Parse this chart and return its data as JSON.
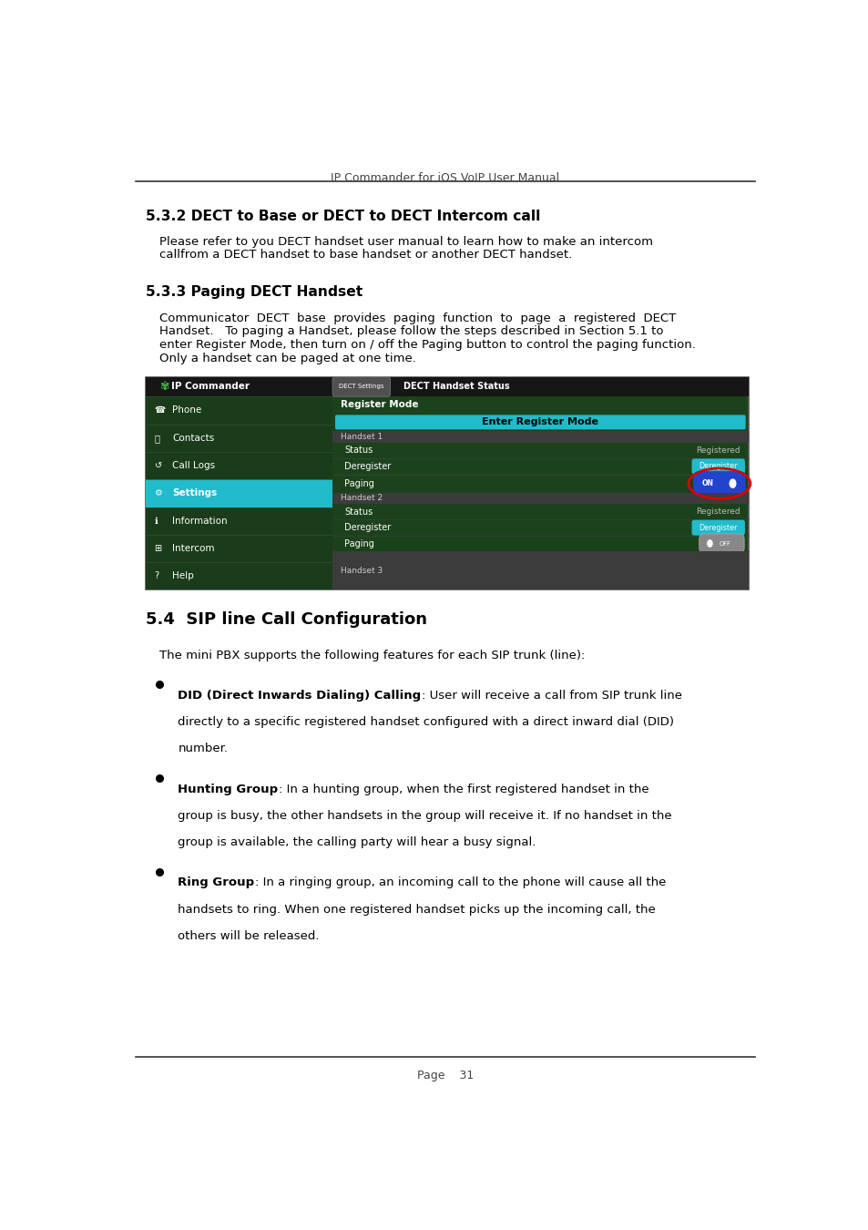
{
  "header_text": "IP Commander for iOS VoIP User Manual",
  "footer_text": "Page    31",
  "section1_title": "5.3.2 DECT to Base or DECT to DECT Intercom call",
  "section1_body1": "Please refer to you DECT handset user manual to learn how to make an intercom",
  "section1_body2": "callfrom a DECT handset to base handset or another DECT handset.",
  "section2_title": "5.3.3 Paging DECT Handset",
  "section2_body1": "Communicator  DECT  base  provides  paging  function  to  page  a  registered  DECT",
  "section2_body2": "Handset.   To paging a Handset, please follow the steps described in Section 5.1 to",
  "section2_body3": "enter Register Mode, then turn on / off the Paging button to control the paging function.",
  "section2_body4": "Only a handset can be paged at one time.",
  "section3_title": "5.4  SIP line Call Configuration",
  "section3_body": "The mini PBX supports the following features for each SIP trunk (line):",
  "b1_bold": "DID (Direct Inwards Dialing) Calling",
  "b1_rest1": ": User will receive a call from SIP trunk line",
  "b1_rest2": "directly to a specific registered handset configured with a direct inward dial (DID)",
  "b1_rest3": "number.",
  "b2_bold": "Hunting Group",
  "b2_rest1": ": In a hunting group, when the first registered handset in the",
  "b2_rest2": "group is busy, the other handsets in the group will receive it. If no handset in the",
  "b2_rest3": "group is available, the calling party will hear a busy signal.",
  "b3_bold": "Ring Group",
  "b3_rest1": ": In a ringing group, an incoming call to the phone will cause all the",
  "b3_rest2": "handsets to ring. When one registered handset picks up the incoming call, the",
  "b3_rest3": "others will be released.",
  "bg_color": "#ffffff",
  "text_color": "#000000",
  "header_color": "#444444"
}
